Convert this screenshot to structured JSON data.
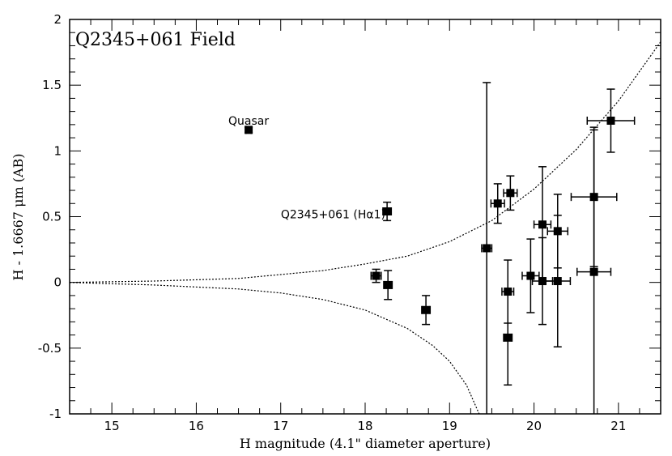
{
  "chart_data": {
    "type": "scatter",
    "title": "Q2345+061 Field",
    "xlabel": "H magnitude (4.1\" diameter aperture)",
    "ylabel": "H - 1.6667 μm (AB)",
    "xlim": [
      14.5,
      21.5
    ],
    "ylim": [
      -1,
      2
    ],
    "xticks": [
      15,
      16,
      17,
      18,
      19,
      20,
      21
    ],
    "xtick_labels": [
      "15",
      "16",
      "17",
      "18",
      "19",
      "20",
      "21"
    ],
    "yticks": [
      -1,
      -0.5,
      0,
      0.5,
      1,
      1.5,
      2
    ],
    "ytick_labels": [
      "-1",
      "-0.5",
      "0",
      "0.5",
      "1",
      "1.5",
      "2"
    ],
    "annotations": [
      {
        "text": "Quasar",
        "x": 16.62,
        "y": 1.23
      },
      {
        "text": "Q2345+061 (Hα1)",
        "x": 17.62,
        "y": 0.52
      }
    ],
    "series": [
      {
        "name": "sources",
        "points": [
          {
            "x": 16.62,
            "y": 1.16,
            "xerr": 0.03,
            "yerr": 0.02
          },
          {
            "x": 18.26,
            "y": 0.54,
            "xerr": 0.05,
            "yerr": 0.07
          },
          {
            "x": 18.13,
            "y": 0.05,
            "xerr": 0.06,
            "yerr": 0.05
          },
          {
            "x": 18.27,
            "y": -0.02,
            "xerr": 0.05,
            "yerr": 0.11
          },
          {
            "x": 18.72,
            "y": -0.21,
            "xerr": 0.05,
            "yerr": 0.11
          },
          {
            "x": 19.44,
            "y": 0.26,
            "xerr": 0.06,
            "yerr": 1.26
          },
          {
            "x": 19.57,
            "y": 0.6,
            "xerr": 0.08,
            "yerr": 0.15
          },
          {
            "x": 19.72,
            "y": 0.68,
            "xerr": 0.08,
            "yerr": 0.13
          },
          {
            "x": 19.69,
            "y": -0.07,
            "xerr": 0.07,
            "yerr": 0.24
          },
          {
            "x": 19.69,
            "y": -0.42,
            "xerr": 0.05,
            "yerr": 0.36
          },
          {
            "x": 19.96,
            "y": 0.05,
            "xerr": 0.1,
            "yerr": 0.28
          },
          {
            "x": 20.1,
            "y": 0.44,
            "xerr": 0.1,
            "yerr": 0.44
          },
          {
            "x": 20.1,
            "y": 0.01,
            "xerr": 0.12,
            "yerr": 0.33
          },
          {
            "x": 20.28,
            "y": 0.39,
            "xerr": 0.12,
            "yerr": 0.28
          },
          {
            "x": 20.28,
            "y": 0.01,
            "xerr": 0.15,
            "yerr": 0.5
          },
          {
            "x": 20.71,
            "y": 0.65,
            "xerr": 0.27,
            "yerr": 0.53
          },
          {
            "x": 20.71,
            "y": 0.08,
            "xerr": 0.2,
            "yerr": 1.08
          },
          {
            "x": 20.91,
            "y": 1.23,
            "xerr": 0.28,
            "yerr": 0.24
          }
        ]
      },
      {
        "name": "upper envelope",
        "style": "dotted",
        "x": [
          14.5,
          15.5,
          16.5,
          17.5,
          18.0,
          18.5,
          19.0,
          19.5,
          20.0,
          20.5,
          21.0,
          21.5
        ],
        "y": [
          0.0,
          0.01,
          0.03,
          0.09,
          0.14,
          0.2,
          0.31,
          0.47,
          0.71,
          1.01,
          1.38,
          1.83
        ]
      },
      {
        "name": "lower envelope",
        "style": "dotted",
        "x": [
          14.5,
          15.5,
          16.5,
          17.0,
          17.5,
          18.0,
          18.5,
          18.8,
          19.0,
          19.2,
          19.35
        ],
        "y": [
          0.0,
          -0.02,
          -0.05,
          -0.08,
          -0.13,
          -0.21,
          -0.35,
          -0.48,
          -0.6,
          -0.78,
          -1.0
        ]
      }
    ]
  }
}
